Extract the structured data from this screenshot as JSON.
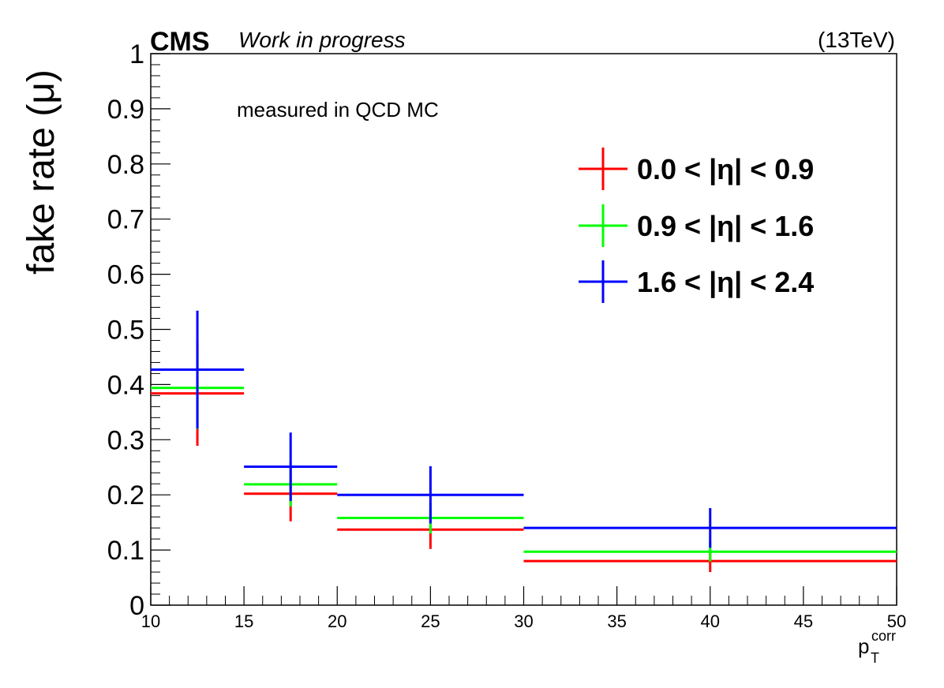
{
  "header": {
    "experiment": "CMS",
    "status": "Work in progress",
    "energy": "(13TeV)"
  },
  "annotation": "measured in QCD MC",
  "chart_data": {
    "type": "line",
    "subtype": "histogram-with-error-bars",
    "xlabel_base": "p",
    "xlabel_sub": "T",
    "xlabel_sup": "corr",
    "ylabel": "fake rate (μ)",
    "xlim": [
      10,
      50
    ],
    "ylim": [
      0,
      1
    ],
    "x_ticks": [
      10,
      15,
      20,
      25,
      30,
      35,
      40,
      45,
      50
    ],
    "y_ticks": [
      0,
      0.1,
      0.2,
      0.3,
      0.4,
      0.5,
      0.6,
      0.7,
      0.8,
      0.9,
      1
    ],
    "x_tick_labels": [
      "10",
      "15",
      "20",
      "25",
      "30",
      "35",
      "40",
      "45",
      "50"
    ],
    "y_tick_labels": [
      "0",
      "0.1",
      "0.2",
      "0.3",
      "0.4",
      "0.5",
      "0.6",
      "0.7",
      "0.8",
      "0.9",
      "1"
    ],
    "bins": [
      [
        10,
        15
      ],
      [
        15,
        20
      ],
      [
        20,
        30
      ],
      [
        30,
        50
      ]
    ],
    "legend_position": "top-right",
    "series": [
      {
        "name": "0.0 < |η| < 0.9",
        "color": "#ff0000",
        "values": [
          0.384,
          0.202,
          0.137,
          0.08
        ],
        "errors": [
          0.095,
          0.05,
          0.035,
          0.02
        ]
      },
      {
        "name": "0.9 < |η| < 1.6",
        "color": "#00ff00",
        "values": [
          0.394,
          0.219,
          0.158,
          0.097
        ],
        "errors": [
          0.075,
          0.04,
          0.028,
          0.018
        ]
      },
      {
        "name": "1.6 < |η| < 2.4",
        "color": "#0000ff",
        "values": [
          0.427,
          0.251,
          0.2,
          0.14
        ],
        "errors": [
          0.107,
          0.062,
          0.052,
          0.036
        ]
      }
    ]
  }
}
